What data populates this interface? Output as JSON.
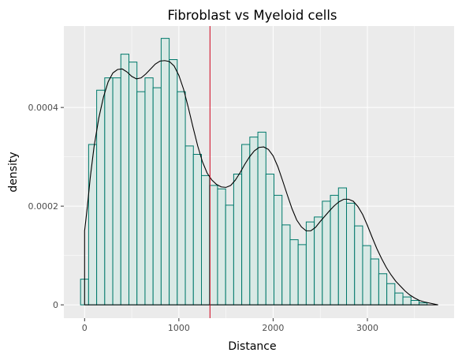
{
  "chart_data": {
    "type": "histogram",
    "title": "Fibroblast vs Myeloid cells",
    "xlabel": "Distance",
    "ylabel": "density",
    "xlim": [
      -220,
      3920
    ],
    "ylim": [
      -2.7e-05,
      0.000565
    ],
    "x_ticks": [
      0,
      1000,
      2000,
      3000
    ],
    "x_tick_labels": [
      "0",
      "1000",
      "2000",
      "3000"
    ],
    "y_ticks": [
      0,
      0.0002,
      0.0004
    ],
    "y_tick_labels": [
      "0",
      "0.0002",
      "0.0004"
    ],
    "bins": {
      "start": -43,
      "width": 85.5,
      "densities": [
        5.2e-05,
        0.000325,
        0.000435,
        0.00046,
        0.00046,
        0.000508,
        0.000492,
        0.000432,
        0.00046,
        0.00044,
        0.00054,
        0.000497,
        0.000432,
        0.000322,
        0.000305,
        0.000262,
        0.000242,
        0.000235,
        0.000202,
        0.000265,
        0.000325,
        0.00034,
        0.00035,
        0.000265,
        0.000222,
        0.000162,
        0.000132,
        0.000122,
        0.000168,
        0.000178,
        0.00021,
        0.000222,
        0.000237,
        0.000206,
        0.00016,
        0.00012,
        9.3e-05,
        6.3e-05,
        4.3e-05,
        2.4e-05,
        1.6e-05,
        9e-06,
        4e-06
      ]
    },
    "density_curve": {
      "x": [
        0,
        30,
        60,
        100,
        150,
        200,
        250,
        300,
        350,
        400,
        450,
        500,
        550,
        600,
        650,
        700,
        750,
        800,
        850,
        900,
        950,
        1000,
        1050,
        1100,
        1150,
        1200,
        1250,
        1300,
        1350,
        1400,
        1450,
        1500,
        1550,
        1600,
        1650,
        1700,
        1750,
        1800,
        1850,
        1900,
        1950,
        2000,
        2050,
        2100,
        2150,
        2200,
        2250,
        2300,
        2350,
        2400,
        2450,
        2500,
        2550,
        2600,
        2650,
        2700,
        2750,
        2800,
        2850,
        2900,
        2950,
        3000,
        3050,
        3100,
        3150,
        3200,
        3250,
        3300,
        3350,
        3400,
        3450,
        3500,
        3550,
        3600,
        3650,
        3700,
        3750
      ],
      "y": [
        0.00015,
        0.0002,
        0.000258,
        0.00032,
        0.000378,
        0.000421,
        0.000452,
        0.00047,
        0.000477,
        0.000478,
        0.000472,
        0.000463,
        0.000458,
        0.00046,
        0.000468,
        0.000478,
        0.000488,
        0.000494,
        0.000495,
        0.000493,
        0.000484,
        0.000465,
        0.000437,
        0.0004,
        0.00036,
        0.000322,
        0.00029,
        0.000267,
        0.000253,
        0.000244,
        0.000239,
        0.000238,
        0.000242,
        0.000253,
        0.000268,
        0.000285,
        0.0003,
        0.000312,
        0.000319,
        0.00032,
        0.000315,
        0.000302,
        0.00028,
        0.000252,
        0.000223,
        0.000195,
        0.000172,
        0.000158,
        0.00015,
        0.00015,
        0.000157,
        0.000169,
        0.00018,
        0.000191,
        0.000201,
        0.000209,
        0.000214,
        0.000214,
        0.00021,
        0.000199,
        0.000183,
        0.000161,
        0.000137,
        0.000114,
        9.4e-05,
        7.6e-05,
        6.1e-05,
        4.8e-05,
        3.8e-05,
        2.8e-05,
        2e-05,
        1.4e-05,
        9e-06,
        6e-06,
        4e-06,
        2e-06,
        0.0
      ]
    },
    "vline_x": 1330,
    "grid": true,
    "colors": {
      "panel": "#ebebeb",
      "grid_major": "#ffffff",
      "bar_fill": "#d9e9e5",
      "bar_edge": "#00796b",
      "curve": "#000000",
      "vline": "#d0021b"
    }
  }
}
